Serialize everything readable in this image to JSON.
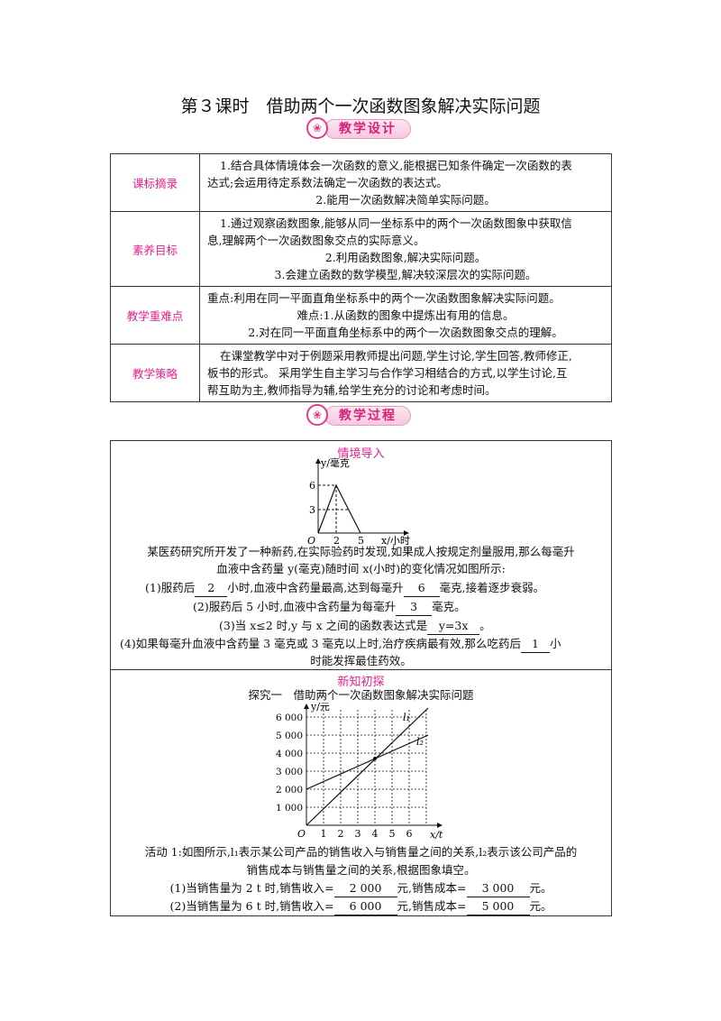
{
  "title": "第３课时　借助两个一次函数图象解决实际问题",
  "badges": {
    "design": "教学设计",
    "process": "教学过程"
  },
  "design_table": [
    {
      "label": "课标摘录",
      "lines": [
        "1.结合具体情境体会一次函数的意义,能根据已知条件确定一次函数的表",
        "达式;会运用待定系数法确定一次函数的表达式。",
        "2.能用一次函数解决简单实际问题。"
      ]
    },
    {
      "label": "素养目标",
      "lines": [
        "1.通过观察函数图象,能够从同一坐标系中的两个一次函数图象中获取信",
        "息,理解两个一次函数图象交点的实际意义。",
        "2.利用函数图象,解决实际问题。",
        "3.会建立函数的数学模型,解决较深层次的实际问题。"
      ]
    },
    {
      "label": "教学重难点",
      "lines": [
        "重点:利用在同一平面直角坐标系中的两个一次函数图象解决实际问题。",
        "难点:1.从函数的图象中提炼出有用的信息。",
        "2.对在同一平面直角坐标系中的两个一次函数图象交点的理解。"
      ]
    },
    {
      "label": "教学策略",
      "lines": [
        "在课堂教学中对于例题采用教师提出问题,学生讨论,学生回答,教师修正,",
        "板书的形式。 采用学生自主学习与合作学习相结合的方式,以学生讨论,互",
        "帮互助为主,教师指导为辅,给学生充分的讨论和考虑时间。"
      ]
    }
  ],
  "intro": {
    "heading": "情境导入",
    "chart1": {
      "ylabel": "y/毫克",
      "xlabel": "x/小时",
      "origin": "O",
      "xticks": [
        "2",
        "5"
      ],
      "yticks": [
        "3",
        "6"
      ]
    },
    "text1": "某医药研究所开发了一种新药,在实际验药时发现,如果成人按规定剂量服用,那么每毫升",
    "text2": "血液中含药量 y(毫克)随时间 x(小时)的变化情况如图所示:",
    "q1_a": "(1)服药后",
    "q1_b": "2",
    "q1_c": "小时,血液中含药量最高,达到每毫升",
    "q1_d": "6",
    "q1_e": "毫克,接着逐步衰弱。",
    "q2_a": "(2)服药后 5 小时,血液中含药量为每毫升",
    "q2_b": "3",
    "q2_c": "毫克。",
    "q3_a": "(3)当 x≤2 时,y 与 x 之间的函数表达式是",
    "q3_b": "y=3x",
    "q3_c": "。",
    "q4_a": "(4)如果每毫升血液中含药量 3 毫克或 3 毫克以上时,治疗疾病最有效,那么吃药后",
    "q4_b": "1",
    "q4_c": "小",
    "q4_d": "时能发挥最佳药效。"
  },
  "explore": {
    "heading": "新知初探",
    "subheading": "探究一　借助两个一次函数图象解决实际问题",
    "chart2": {
      "ylabel": "y/元",
      "xlabel": "x/t",
      "origin": "O",
      "xticks": [
        "1",
        "2",
        "3",
        "4",
        "5",
        "6"
      ],
      "yticks": [
        "1 000",
        "2 000",
        "3 000",
        "4 000",
        "5 000",
        "6 000"
      ],
      "l1": "l₁",
      "l2": "l₂"
    },
    "act1": "活动 1:如图所示,l₁表示某公司产品的销售收入与销售量之间的关系,l₂表示该公司产品的",
    "act2": "销售成本与销售量之间的关系,根据图象填空。",
    "a1_a": "(1)当销售量为 2 t 时,销售收入=",
    "a1_b": "2 000",
    "a1_c": "元,销售成本=",
    "a1_d": "3 000",
    "a1_e": "元。",
    "a2_a": "(2)当销售量为 6 t 时,销售收入=",
    "a2_b": "6 000",
    "a2_c": "元,销售成本=",
    "a2_d": "5 000",
    "a2_e": "元。"
  }
}
